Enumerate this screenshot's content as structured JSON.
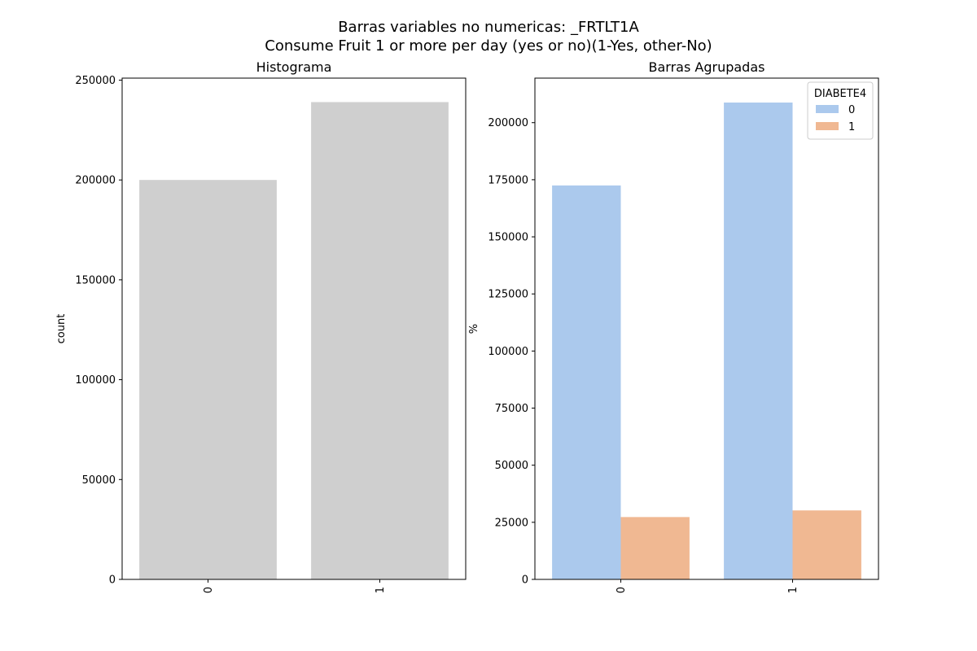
{
  "figure": {
    "title_line1": "Barras variables no numericas: _FRTLT1A",
    "title_line2": "Consume Fruit 1 or more per day (yes or no)(1-Yes, other-No)"
  },
  "chart_data": [
    {
      "type": "bar",
      "title": "Histograma",
      "xlabel": "",
      "ylabel": "count",
      "categories": [
        "0",
        "1"
      ],
      "values": [
        200000,
        239000
      ],
      "ylim": [
        0,
        251000
      ],
      "yticks": [
        0,
        50000,
        100000,
        150000,
        200000,
        250000
      ],
      "bar_color": "#cfcfcf",
      "grid": false
    },
    {
      "type": "bar",
      "title": "Barras Agrupadas",
      "xlabel": "",
      "ylabel": "%",
      "categories": [
        "0",
        "1"
      ],
      "series": [
        {
          "name": "0",
          "values": [
            172500,
            208800
          ],
          "color": "#abc9ed"
        },
        {
          "name": "1",
          "values": [
            27300,
            30200
          ],
          "color": "#f0b892"
        }
      ],
      "legend_title": "DIABETE4",
      "legend_position": "top-right",
      "ylim": [
        0,
        219500
      ],
      "yticks": [
        0,
        25000,
        50000,
        75000,
        100000,
        125000,
        150000,
        175000,
        200000
      ],
      "grid": false
    }
  ]
}
